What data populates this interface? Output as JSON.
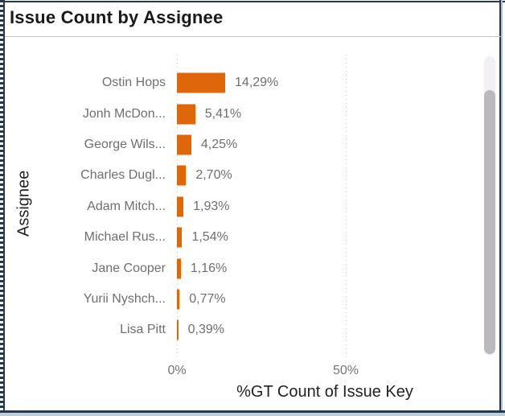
{
  "visual": {
    "title": "Issue Count by Assignee"
  },
  "chart_data": {
    "type": "bar",
    "orientation": "horizontal",
    "title": "Issue Count by Assignee",
    "categories": [
      "Ostin Hops",
      "Jonh McDon...",
      "George Wils...",
      "Charles Dugl...",
      "Adam Mitch...",
      "Michael Rus...",
      "Jane Cooper",
      "Yurii Nyshch...",
      "Lisa Pitt"
    ],
    "values": [
      14.29,
      5.41,
      4.25,
      2.7,
      1.93,
      1.54,
      1.16,
      0.77,
      0.39
    ],
    "value_labels": [
      "14,29%",
      "5,41%",
      "4,25%",
      "2,70%",
      "1,93%",
      "1,54%",
      "1,16%",
      "0,77%",
      "0,39%"
    ],
    "xlabel": "%GT Count of Issue Key",
    "ylabel": "Assignee",
    "x_ticks": [
      {
        "value": 0,
        "label": "0%"
      },
      {
        "value": 50,
        "label": "50%"
      }
    ],
    "xlim": [
      0,
      89
    ],
    "grid": "dotted-vertical-at-ticks",
    "legend": "none",
    "bar_color": "#DF6709",
    "label_color": "#6F6F6F"
  },
  "colors": {
    "bar": "#DF6709",
    "title_text": "#1A1A1A",
    "axis_title_text": "#222222",
    "label_text": "#6F6F6F",
    "tick_text": "#757575",
    "gridline": "#C9C9C9",
    "title_separator": "#C8C8C8",
    "frame_border_dark": "#24394F",
    "frame_border_light": "#AFC1D4",
    "scrollbar_track": "#F1F1F1",
    "scrollbar_thumb": "#BABABA",
    "background": "#FFFFFF"
  }
}
